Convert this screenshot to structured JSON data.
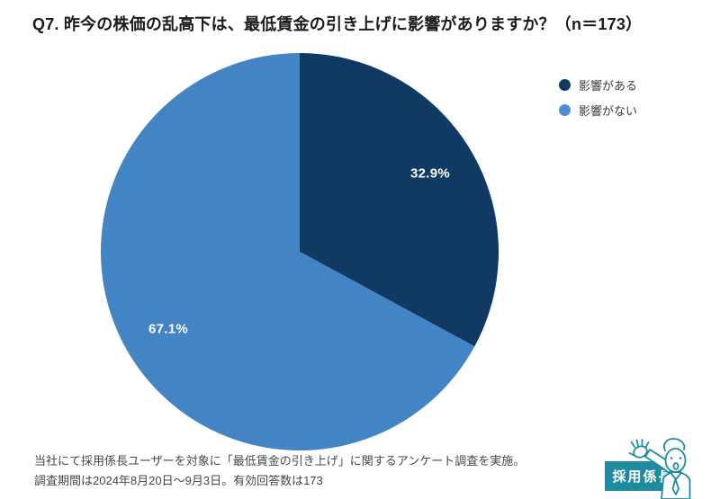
{
  "title": "Q7. 昨今の株価の乱高下は、最低賃金の引き上げに影響がありますか？（n＝173）",
  "chart_data": {
    "type": "pie",
    "labels": [
      "影響がある",
      "影響がない"
    ],
    "values": [
      32.9,
      67.1
    ],
    "value_labels": [
      "32.9%",
      "67.1%"
    ],
    "colors": [
      "#103a63",
      "#4284c4"
    ],
    "unit": "%",
    "sample_size": 173,
    "start_angle": "top",
    "direction": "clockwise",
    "legend_position": "right"
  },
  "legend": {
    "items": [
      {
        "label": "影響がある",
        "color": "#103a63"
      },
      {
        "label": "影響がない",
        "color": "#4a8fd1"
      }
    ]
  },
  "footer": {
    "line1": "当社にて採用係長ユーザーを対象に「最低賃金の引き上げ」に関するアンケート調査を実施。",
    "line2": "調査期間は2024年8月20日～9月3日。有効回答数は173"
  },
  "logo": {
    "text": "採用係長",
    "color": "#1e8c9e"
  }
}
